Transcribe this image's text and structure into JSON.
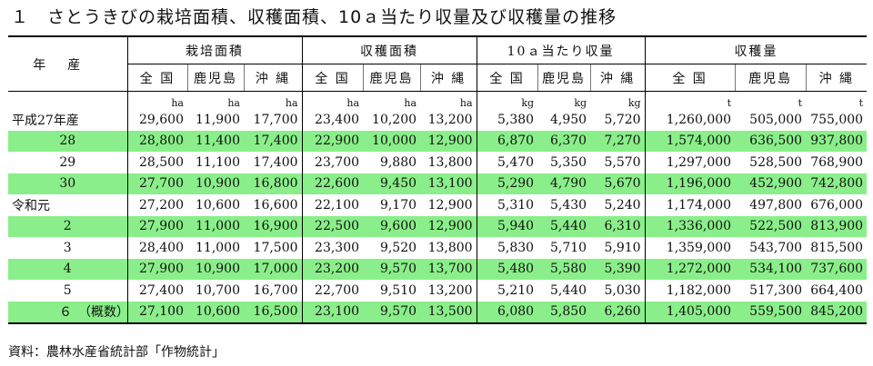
{
  "title": "１　さとうきびの栽培面積、収穫面積、10ａ当たり収量及び収穫量の推移",
  "year_header": "年産",
  "groups": [
    "栽培面積",
    "収穫面積",
    "10ａ当たり収量",
    "収穫量"
  ],
  "subheaders": [
    "全 国",
    "鹿児島",
    "沖 縄"
  ],
  "units": [
    "ha",
    "ha",
    "ha",
    "ha",
    "ha",
    "ha",
    "kg",
    "kg",
    "kg",
    "t",
    "t",
    "t"
  ],
  "rows": [
    {
      "year": "平成27年産",
      "values": [
        "29,600",
        "11,900",
        "17,700",
        "23,400",
        "10,200",
        "13,200",
        "5,380",
        "4,950",
        "5,720",
        "1,260,000",
        "505,000",
        "755,000"
      ]
    },
    {
      "year": "28",
      "values": [
        "28,800",
        "11,400",
        "17,400",
        "22,900",
        "10,000",
        "12,900",
        "6,870",
        "6,370",
        "7,270",
        "1,574,000",
        "636,500",
        "937,800"
      ]
    },
    {
      "year": "29",
      "values": [
        "28,500",
        "11,100",
        "17,400",
        "23,700",
        "9,880",
        "13,800",
        "5,470",
        "5,350",
        "5,570",
        "1,297,000",
        "528,500",
        "768,900"
      ]
    },
    {
      "year": "30",
      "values": [
        "27,700",
        "10,900",
        "16,800",
        "22,600",
        "9,450",
        "13,100",
        "5,290",
        "4,790",
        "5,670",
        "1,196,000",
        "452,900",
        "742,800"
      ]
    },
    {
      "year": "令和元",
      "values": [
        "27,200",
        "10,600",
        "16,600",
        "22,100",
        "9,170",
        "12,900",
        "5,310",
        "5,430",
        "5,240",
        "1,174,000",
        "497,800",
        "676,000"
      ]
    },
    {
      "year": "2",
      "values": [
        "27,900",
        "11,000",
        "16,900",
        "22,500",
        "9,600",
        "12,900",
        "5,940",
        "5,440",
        "6,310",
        "1,336,000",
        "522,500",
        "813,900"
      ]
    },
    {
      "year": "3",
      "values": [
        "28,400",
        "11,000",
        "17,500",
        "23,300",
        "9,520",
        "13,800",
        "5,830",
        "5,710",
        "5,910",
        "1,359,000",
        "543,700",
        "815,500"
      ]
    },
    {
      "year": "4",
      "values": [
        "27,900",
        "10,900",
        "17,000",
        "23,200",
        "9,570",
        "13,700",
        "5,480",
        "5,580",
        "5,390",
        "1,272,000",
        "534,100",
        "737,600"
      ]
    },
    {
      "year": "5",
      "values": [
        "27,400",
        "10,700",
        "16,700",
        "22,700",
        "9,510",
        "13,200",
        "5,210",
        "5,440",
        "5,030",
        "1,182,000",
        "517,300",
        "664,400"
      ]
    },
    {
      "year": "６　（概数）",
      "values": [
        "27,100",
        "10,600",
        "16,500",
        "23,100",
        "9,570",
        "13,500",
        "6,080",
        "5,850",
        "6,260",
        "1,405,000",
        "559,500",
        "845,200"
      ]
    }
  ],
  "source": "資料：農林水産省統計部「作物統計」",
  "colors": {
    "highlight_row": "#8aef8a"
  }
}
